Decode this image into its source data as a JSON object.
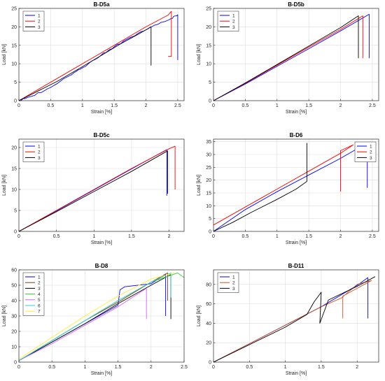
{
  "chart_data": [
    {
      "type": "line",
      "title": "B-D5a",
      "xlabel": "Strain [%]",
      "ylabel": "Load [kN]",
      "xlim": [
        0,
        2.6
      ],
      "ylim": [
        0,
        25
      ],
      "xticks": [
        0,
        0.5,
        1,
        1.5,
        2,
        2.5
      ],
      "xtick_labels": [
        "0",
        "0.5",
        "1",
        "1.5",
        "2",
        "2.5"
      ],
      "yticks": [
        0,
        5,
        10,
        15,
        20,
        25
      ],
      "ytick_labels": [
        "0",
        "5",
        "10",
        "15",
        "20",
        "25"
      ],
      "grid": true,
      "legend_position": "top-left",
      "series": [
        {
          "name": "1",
          "color": "#0000ff",
          "x": [
            0,
            0.2,
            0.5,
            0.8,
            1.0,
            1.3,
            1.5,
            1.8,
            2.0,
            2.2,
            2.4,
            2.5,
            2.5
          ],
          "y": [
            0,
            1.2,
            3.6,
            6.8,
            8.9,
            12.4,
            14.6,
            17.4,
            19.2,
            20.8,
            22.3,
            23.3,
            11.0
          ],
          "jagged": true
        },
        {
          "name": "2",
          "color": "#ff0000",
          "x": [
            0,
            0.3,
            0.6,
            1.0,
            1.5,
            2.0,
            2.35,
            2.4,
            2.4,
            2.35
          ],
          "y": [
            0,
            3.0,
            6.0,
            10.0,
            15.0,
            20.0,
            23.2,
            24.2,
            12.0,
            12.0
          ]
        },
        {
          "name": "3",
          "color": "#000000",
          "x": [
            0,
            0.3,
            0.6,
            1.0,
            1.3,
            1.6,
            1.9,
            2.08,
            2.08
          ],
          "y": [
            0,
            2.6,
            5.2,
            9.2,
            12.3,
            15.4,
            18.2,
            20.0,
            9.5
          ]
        }
      ]
    },
    {
      "type": "line",
      "title": "B-D5b",
      "xlabel": "Strain [%]",
      "ylabel": "Load [kN]",
      "xlim": [
        0,
        2.6
      ],
      "ylim": [
        0,
        25
      ],
      "xticks": [
        0,
        0.5,
        1,
        1.5,
        2,
        2.5
      ],
      "xtick_labels": [
        "0",
        "0.5",
        "1",
        "1.5",
        "2",
        "2.5"
      ],
      "yticks": [
        0,
        5,
        10,
        15,
        20,
        25
      ],
      "ytick_labels": [
        "0",
        "5",
        "10",
        "15",
        "20",
        "25"
      ],
      "grid": true,
      "legend_position": "top-left",
      "series": [
        {
          "name": "1",
          "color": "#0000ff",
          "x": [
            0,
            0.5,
            1.0,
            1.5,
            2.0,
            2.45,
            2.45
          ],
          "y": [
            0,
            4.5,
            9.3,
            14.1,
            18.9,
            23.4,
            11.5
          ]
        },
        {
          "name": "2",
          "color": "#ff0000",
          "x": [
            0,
            0.5,
            1.0,
            1.5,
            2.0,
            2.35,
            2.35
          ],
          "y": [
            0,
            4.7,
            9.6,
            14.5,
            19.3,
            23.0,
            11.5
          ]
        },
        {
          "name": "3",
          "color": "#000000",
          "x": [
            0,
            0.5,
            1.0,
            1.5,
            2.0,
            2.28,
            2.28
          ],
          "y": [
            0,
            4.8,
            9.8,
            14.8,
            19.8,
            23.0,
            11.5
          ]
        }
      ]
    },
    {
      "type": "line",
      "title": "B-D5c",
      "xlabel": "Strain [%]",
      "ylabel": "Load [kN]",
      "xlim": [
        0,
        2.2
      ],
      "ylim": [
        0,
        22
      ],
      "xticks": [
        0,
        0.5,
        1,
        1.5,
        2
      ],
      "xtick_labels": [
        "0",
        "0.5",
        "1",
        "1.5",
        "2"
      ],
      "yticks": [
        0,
        5,
        10,
        15,
        20
      ],
      "ytick_labels": [
        "0",
        "5",
        "10",
        "15",
        "20"
      ],
      "grid": true,
      "legend_position": "top-left",
      "series": [
        {
          "name": "1",
          "color": "#0000ff",
          "x": [
            0,
            0.5,
            1.0,
            1.5,
            1.97,
            1.97
          ],
          "y": [
            0,
            4.9,
            9.9,
            14.9,
            19.5,
            8.5
          ]
        },
        {
          "name": "2",
          "color": "#ff0000",
          "x": [
            0,
            0.5,
            1.0,
            1.5,
            2.0,
            2.08,
            2.08
          ],
          "y": [
            0,
            5.0,
            10.0,
            15.0,
            19.7,
            20.3,
            10.0
          ]
        },
        {
          "name": "3",
          "color": "#000000",
          "x": [
            0,
            0.5,
            1.0,
            1.5,
            1.98,
            1.98
          ],
          "y": [
            0,
            4.7,
            9.5,
            14.3,
            19.2,
            9.0
          ]
        }
      ]
    },
    {
      "type": "line",
      "title": "B-D6",
      "xlabel": "Strain [%]",
      "ylabel": "Load [kN]",
      "xlim": [
        0,
        2.6
      ],
      "ylim": [
        0,
        36
      ],
      "xticks": [
        0,
        0.5,
        1,
        1.5,
        2,
        2.5
      ],
      "xtick_labels": [
        "0",
        "0.5",
        "1",
        "1.5",
        "2",
        "2.5"
      ],
      "yticks": [
        0,
        5,
        10,
        15,
        20,
        25,
        30,
        35
      ],
      "ytick_labels": [
        "0",
        "5",
        "10",
        "15",
        "20",
        "25",
        "30",
        "35"
      ],
      "grid": true,
      "legend_position": "top-right",
      "series": [
        {
          "name": "1",
          "color": "#0000ff",
          "x": [
            0,
            0.5,
            1.0,
            1.5,
            2.0,
            2.42,
            2.42
          ],
          "y": [
            0,
            8.5,
            15.5,
            22.0,
            28.5,
            34.5,
            17.0
          ]
        },
        {
          "name": "2",
          "color": "#ff0000",
          "x": [
            0,
            0.5,
            1.0,
            1.5,
            2.0,
            2.2,
            2.0,
            2.0
          ],
          "y": [
            2.5,
            9.5,
            16.5,
            23.5,
            30.5,
            33.8,
            31.5,
            15.5
          ]
        },
        {
          "name": "3",
          "color": "#000000",
          "x": [
            0,
            0.3,
            0.6,
            1.0,
            1.3,
            1.47,
            1.47
          ],
          "y": [
            0,
            3.5,
            7.5,
            12.5,
            16.5,
            19.5,
            34.5
          ]
        }
      ]
    },
    {
      "type": "line",
      "title": "B-D8",
      "xlabel": "Strain [%]",
      "ylabel": "Load [kN]",
      "xlim": [
        0,
        2.5
      ],
      "ylim": [
        0,
        60
      ],
      "xticks": [
        0,
        0.5,
        1,
        1.5,
        2,
        2.5
      ],
      "xtick_labels": [
        "0",
        "0.5",
        "1",
        "1.5",
        "2",
        "2.5"
      ],
      "yticks": [
        0,
        10,
        20,
        30,
        40,
        50,
        60
      ],
      "ytick_labels": [
        "0",
        "10",
        "20",
        "30",
        "40",
        "50",
        "60"
      ],
      "grid": true,
      "legend_position": "top-left",
      "series": [
        {
          "name": "1",
          "color": "#0000ff",
          "x": [
            0,
            0.5,
            1.0,
            1.5,
            1.53,
            1.6,
            2.0,
            2.22,
            2.22
          ],
          "y": [
            1,
            13,
            25,
            37,
            47,
            49,
            51,
            57,
            30
          ]
        },
        {
          "name": "2",
          "color": "#7a3b10",
          "x": [
            0,
            0.5,
            1.0,
            1.5,
            2.0,
            2.25,
            2.25
          ],
          "y": [
            1,
            14,
            27,
            39,
            52,
            58,
            40
          ]
        },
        {
          "name": "3",
          "color": "#000000",
          "x": [
            0,
            0.5,
            1.0,
            1.5,
            2.0,
            2.3,
            2.3
          ],
          "y": [
            1,
            13,
            25,
            38,
            50,
            57,
            28
          ]
        },
        {
          "name": "4",
          "color": "#33cc33",
          "x": [
            0,
            0.5,
            1.0,
            1.5,
            2.0,
            2.4,
            2.5
          ],
          "y": [
            1,
            14,
            27,
            40,
            52,
            58,
            55
          ]
        },
        {
          "name": "5",
          "color": "#cc66ff",
          "x": [
            0,
            0.5,
            1.0,
            1.5,
            1.93,
            1.93
          ],
          "y": [
            1,
            12,
            24,
            36,
            48,
            28
          ]
        },
        {
          "name": "6",
          "color": "#33cccc",
          "x": [
            0,
            0.5,
            1.0,
            1.5,
            2.0,
            2.3,
            2.3
          ],
          "y": [
            1,
            14,
            27,
            40,
            52,
            58,
            42
          ]
        },
        {
          "name": "7",
          "color": "#ffee33",
          "x": [
            0,
            0.5,
            1.0,
            1.5,
            2.0,
            2.35
          ],
          "y": [
            2,
            16,
            30,
            43,
            54,
            58
          ]
        }
      ]
    },
    {
      "type": "line",
      "title": "B-D11",
      "xlabel": "Strain [%]",
      "ylabel": "Load [kN]",
      "xlim": [
        0,
        2.3
      ],
      "ylim": [
        0,
        95
      ],
      "xticks": [
        0,
        0.5,
        1,
        1.5,
        2
      ],
      "xtick_labels": [
        "0",
        "0.5",
        "1",
        "1.5",
        "2"
      ],
      "yticks": [
        0,
        20,
        40,
        60,
        80
      ],
      "ytick_labels": [
        "0",
        "20",
        "40",
        "60",
        "80"
      ],
      "grid": true,
      "legend_position": "top-left",
      "series": [
        {
          "name": "1",
          "color": "#0000ff",
          "x": [
            0,
            0.5,
            1.0,
            1.5,
            2.0,
            2.15,
            2.15
          ],
          "y": [
            0,
            19,
            38,
            57,
            79,
            87,
            45
          ]
        },
        {
          "name": "2",
          "color": "#cc5522",
          "x": [
            0,
            0.5,
            1.0,
            1.5,
            1.78,
            2.0,
            2.2,
            1.8,
            1.8
          ],
          "y": [
            0,
            19,
            38,
            57,
            66,
            80,
            84,
            68,
            45
          ]
        },
        {
          "name": "3",
          "color": "#000000",
          "x": [
            0,
            0.5,
            1.0,
            1.3,
            1.4,
            1.5,
            1.48,
            1.6,
            2.0,
            2.25
          ],
          "y": [
            0,
            18,
            36,
            49,
            62,
            72,
            40,
            64,
            78,
            88
          ]
        }
      ]
    }
  ]
}
